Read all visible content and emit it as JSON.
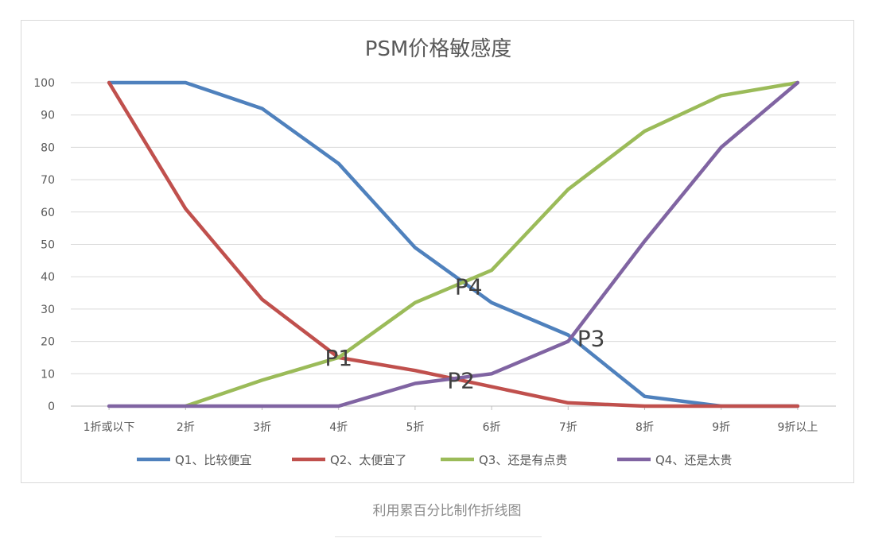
{
  "chart_data": {
    "type": "line",
    "title": "PSM价格敏感度",
    "categories": [
      "1折或以下",
      "2折",
      "3折",
      "4折",
      "5折",
      "6折",
      "7折",
      "8折",
      "9折",
      "9折以上"
    ],
    "series": [
      {
        "name": "Q1、比较便宜",
        "color": "#4f81bd",
        "values": [
          100,
          100,
          92,
          75,
          49,
          32,
          22,
          3,
          0,
          0
        ]
      },
      {
        "name": "Q2、太便宜了",
        "color": "#c0504d",
        "values": [
          100,
          61,
          33,
          15,
          11,
          6,
          1,
          0,
          0,
          0
        ]
      },
      {
        "name": "Q3、还是有点贵",
        "color": "#9bbb59",
        "values": [
          null,
          0,
          8,
          15,
          32,
          42,
          67,
          85,
          96,
          100
        ]
      },
      {
        "name": "Q4、还是太贵",
        "color": "#8064a2",
        "values": [
          0,
          0,
          0,
          0,
          7,
          10,
          20,
          51,
          80,
          100
        ]
      }
    ],
    "ylim": [
      0,
      100
    ],
    "yticks": [
      0,
      10,
      20,
      30,
      40,
      50,
      60,
      70,
      80,
      90,
      100
    ],
    "grid": true,
    "legend": "bottom",
    "annotations": [
      {
        "text": "P1",
        "x": 3.0,
        "y": 15
      },
      {
        "text": "P2",
        "x": 4.6,
        "y": 8
      },
      {
        "text": "P3",
        "x": 6.3,
        "y": 21
      },
      {
        "text": "P4",
        "x": 4.7,
        "y": 37
      }
    ]
  },
  "caption": "利用累百分比制作折线图"
}
